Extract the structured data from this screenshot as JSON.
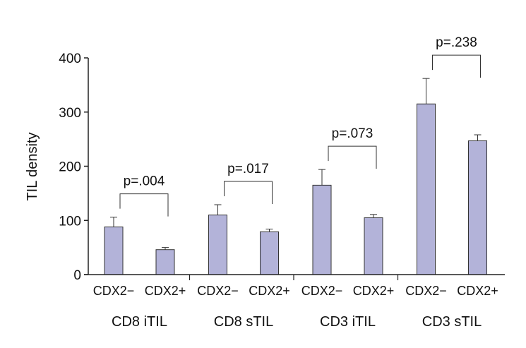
{
  "chart_data": {
    "type": "bar",
    "title": "",
    "xlabel": "",
    "ylabel": "TIL density",
    "ylim": [
      0,
      400
    ],
    "yticks": [
      0,
      100,
      200,
      300,
      400
    ],
    "grid": false,
    "bar_color": "#b3b3d9",
    "groups": [
      {
        "label": "CD8 iTIL",
        "categories": [
          "CDX2−",
          "CDX2+"
        ],
        "values": [
          88,
          46
        ],
        "errors": [
          18,
          4
        ],
        "p_value": "p=.004"
      },
      {
        "label": "CD8 sTIL",
        "categories": [
          "CDX2−",
          "CDX2+"
        ],
        "values": [
          110,
          79
        ],
        "errors": [
          19,
          5
        ],
        "p_value": "p=.017"
      },
      {
        "label": "CD3 iTIL",
        "categories": [
          "CDX2−",
          "CDX2+"
        ],
        "values": [
          165,
          105
        ],
        "errors": [
          29,
          6
        ],
        "p_value": "p=.073"
      },
      {
        "label": "CD3 sTIL",
        "categories": [
          "CDX2−",
          "CDX2+"
        ],
        "values": [
          315,
          247
        ],
        "errors": [
          47,
          11
        ],
        "p_value": "p=.238"
      }
    ]
  }
}
